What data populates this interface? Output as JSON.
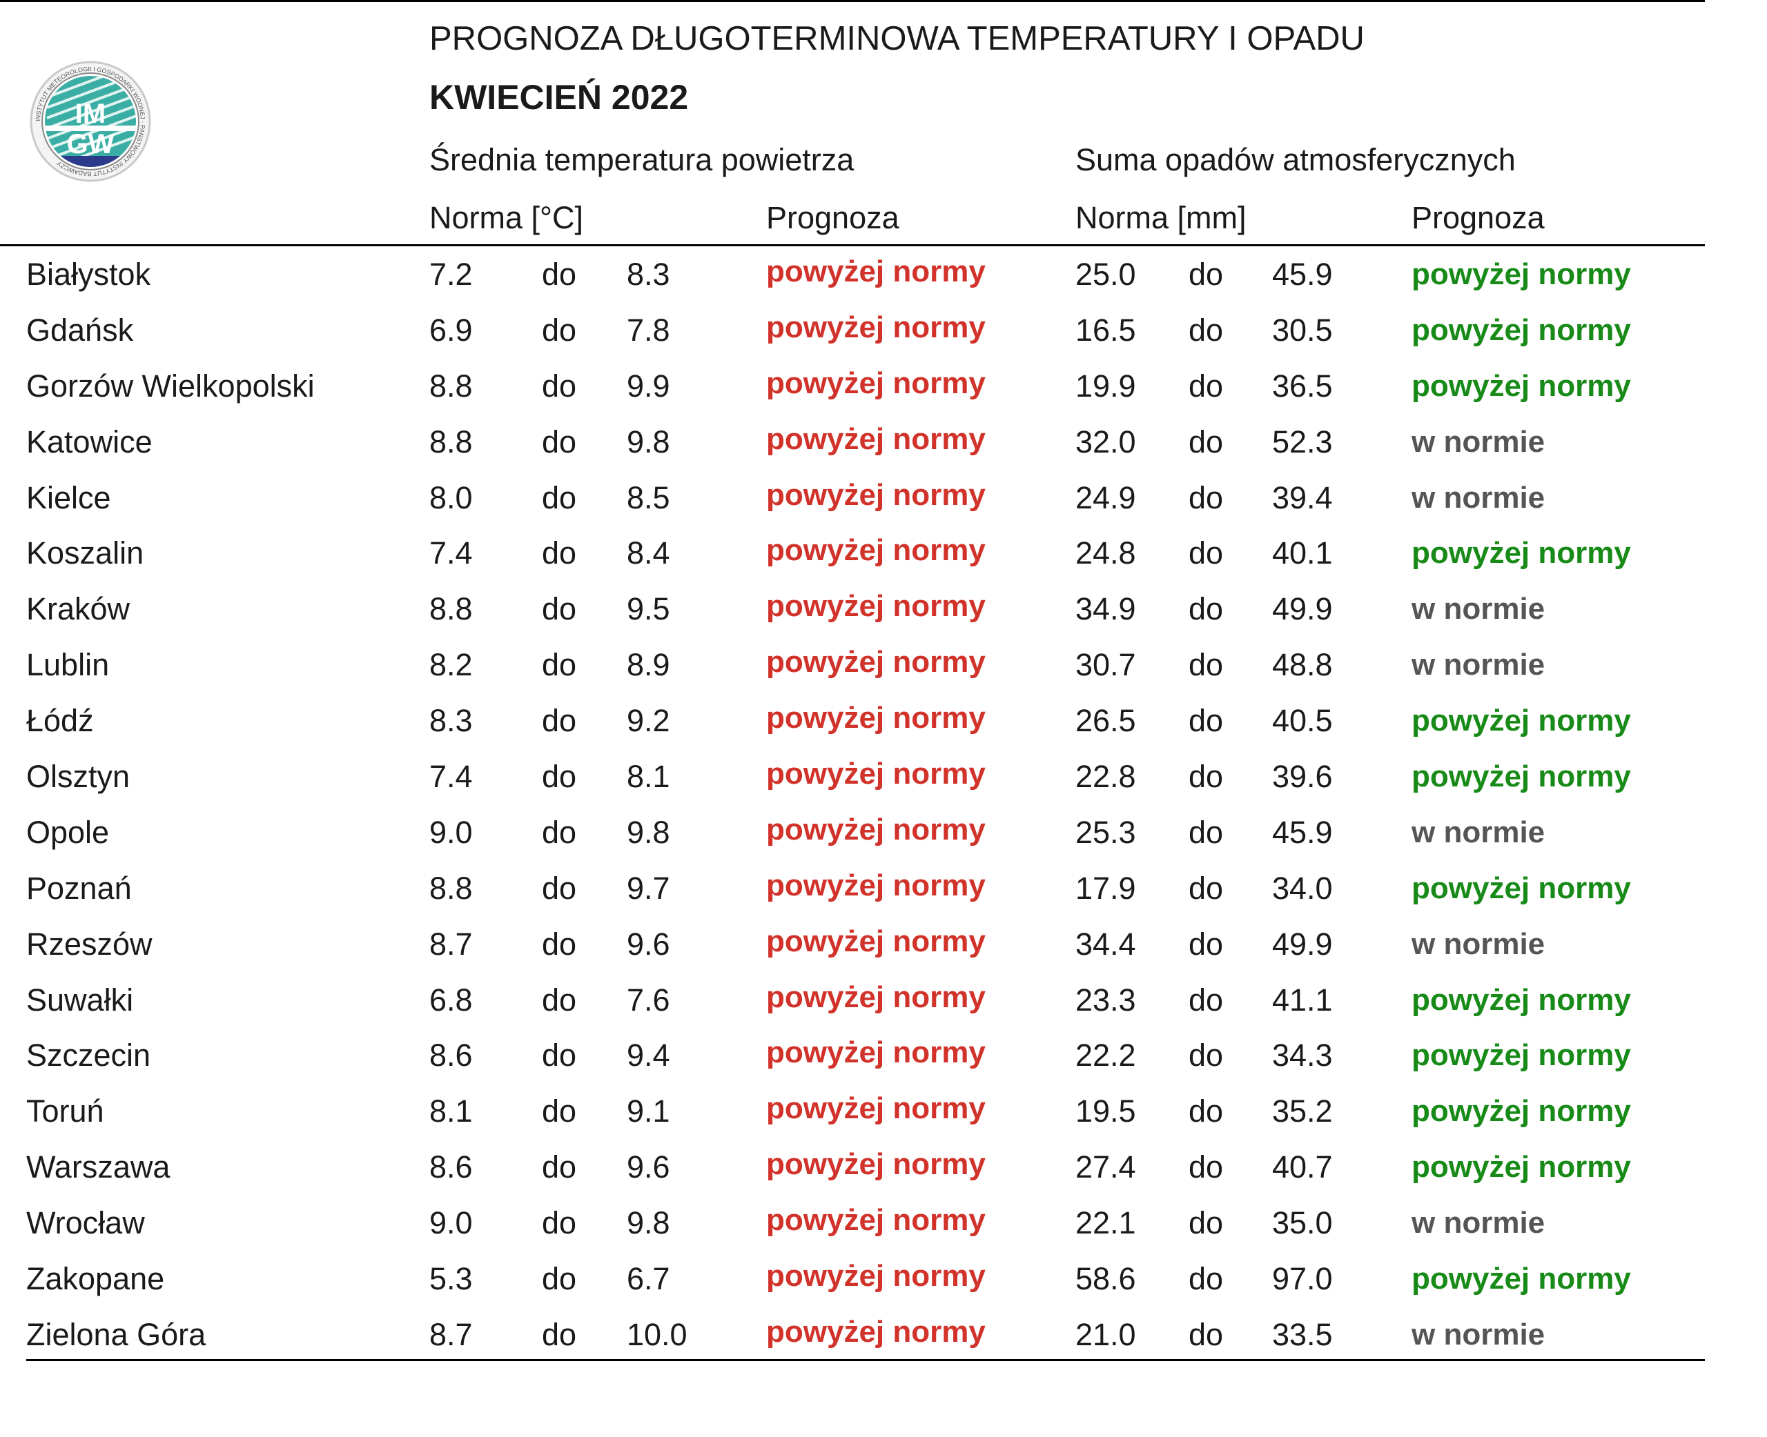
{
  "header": {
    "title": "PROGNOZA DŁUGOTERMINOWA TEMPERATURY I OPADU",
    "subtitle": "KWIECIEŃ 2022",
    "temperature_section": "Średnia temperatura powietrza",
    "precipitation_section": "Suma opadów atmosferycznych",
    "temp_norm_label": "Norma [°C]",
    "temp_forecast_label": "Prognoza",
    "precip_norm_label": "Norma [mm]",
    "precip_forecast_label": "Prognoza"
  },
  "logo": {
    "text_top": "IM",
    "text_bottom": "GW",
    "ring_text": "INSTYTUT METEOROLOGII I GOSPODARKI WODNEJ · PAŃSTWOWY INSTYTUT BADAWCZY"
  },
  "colors": {
    "temp_forecast": "#d1322a",
    "precip_above": "#178a17",
    "precip_normal": "#555555",
    "logo_teal": "#3aaea4"
  },
  "rows": [
    {
      "city": "Białystok",
      "t_min": "7.2",
      "t_do": "do",
      "t_max": "8.3",
      "t_fc": "powyżej normy",
      "p_min": "25.0",
      "p_do": "do",
      "p_max": "45.9",
      "p_fc": "powyżej normy",
      "p_type": "above"
    },
    {
      "city": "Gdańsk",
      "t_min": "6.9",
      "t_do": "do",
      "t_max": "7.8",
      "t_fc": "powyżej normy",
      "p_min": "16.5",
      "p_do": "do",
      "p_max": "30.5",
      "p_fc": "powyżej normy",
      "p_type": "above"
    },
    {
      "city": "Gorzów Wielkopolski",
      "t_min": "8.8",
      "t_do": "do",
      "t_max": "9.9",
      "t_fc": "powyżej normy",
      "p_min": "19.9",
      "p_do": "do",
      "p_max": "36.5",
      "p_fc": "powyżej normy",
      "p_type": "above"
    },
    {
      "city": "Katowice",
      "t_min": "8.8",
      "t_do": "do",
      "t_max": "9.8",
      "t_fc": "powyżej normy",
      "p_min": "32.0",
      "p_do": "do",
      "p_max": "52.3",
      "p_fc": "w normie",
      "p_type": "normal"
    },
    {
      "city": "Kielce",
      "t_min": "8.0",
      "t_do": "do",
      "t_max": "8.5",
      "t_fc": "powyżej normy",
      "p_min": "24.9",
      "p_do": "do",
      "p_max": "39.4",
      "p_fc": "w normie",
      "p_type": "normal"
    },
    {
      "city": "Koszalin",
      "t_min": "7.4",
      "t_do": "do",
      "t_max": "8.4",
      "t_fc": "powyżej normy",
      "p_min": "24.8",
      "p_do": "do",
      "p_max": "40.1",
      "p_fc": "powyżej normy",
      "p_type": "above"
    },
    {
      "city": "Kraków",
      "t_min": "8.8",
      "t_do": "do",
      "t_max": "9.5",
      "t_fc": "powyżej normy",
      "p_min": "34.9",
      "p_do": "do",
      "p_max": "49.9",
      "p_fc": "w normie",
      "p_type": "normal"
    },
    {
      "city": "Lublin",
      "t_min": "8.2",
      "t_do": "do",
      "t_max": "8.9",
      "t_fc": "powyżej normy",
      "p_min": "30.7",
      "p_do": "do",
      "p_max": "48.8",
      "p_fc": "w normie",
      "p_type": "normal"
    },
    {
      "city": "Łódź",
      "t_min": "8.3",
      "t_do": "do",
      "t_max": "9.2",
      "t_fc": "powyżej normy",
      "p_min": "26.5",
      "p_do": "do",
      "p_max": "40.5",
      "p_fc": "powyżej normy",
      "p_type": "above"
    },
    {
      "city": "Olsztyn",
      "t_min": "7.4",
      "t_do": "do",
      "t_max": "8.1",
      "t_fc": "powyżej normy",
      "p_min": "22.8",
      "p_do": "do",
      "p_max": "39.6",
      "p_fc": "powyżej normy",
      "p_type": "above"
    },
    {
      "city": "Opole",
      "t_min": "9.0",
      "t_do": "do",
      "t_max": "9.8",
      "t_fc": "powyżej normy",
      "p_min": "25.3",
      "p_do": "do",
      "p_max": "45.9",
      "p_fc": "w normie",
      "p_type": "normal"
    },
    {
      "city": "Poznań",
      "t_min": "8.8",
      "t_do": "do",
      "t_max": "9.7",
      "t_fc": "powyżej normy",
      "p_min": "17.9",
      "p_do": "do",
      "p_max": "34.0",
      "p_fc": "powyżej normy",
      "p_type": "above"
    },
    {
      "city": "Rzeszów",
      "t_min": "8.7",
      "t_do": "do",
      "t_max": "9.6",
      "t_fc": "powyżej normy",
      "p_min": "34.4",
      "p_do": "do",
      "p_max": "49.9",
      "p_fc": "w normie",
      "p_type": "normal"
    },
    {
      "city": "Suwałki",
      "t_min": "6.8",
      "t_do": "do",
      "t_max": "7.6",
      "t_fc": "powyżej normy",
      "p_min": "23.3",
      "p_do": "do",
      "p_max": "41.1",
      "p_fc": "powyżej normy",
      "p_type": "above"
    },
    {
      "city": "Szczecin",
      "t_min": "8.6",
      "t_do": "do",
      "t_max": "9.4",
      "t_fc": "powyżej normy",
      "p_min": "22.2",
      "p_do": "do",
      "p_max": "34.3",
      "p_fc": "powyżej normy",
      "p_type": "above"
    },
    {
      "city": "Toruń",
      "t_min": "8.1",
      "t_do": "do",
      "t_max": "9.1",
      "t_fc": "powyżej normy",
      "p_min": "19.5",
      "p_do": "do",
      "p_max": "35.2",
      "p_fc": "powyżej normy",
      "p_type": "above"
    },
    {
      "city": "Warszawa",
      "t_min": "8.6",
      "t_do": "do",
      "t_max": "9.6",
      "t_fc": "powyżej normy",
      "p_min": "27.4",
      "p_do": "do",
      "p_max": "40.7",
      "p_fc": "powyżej normy",
      "p_type": "above"
    },
    {
      "city": "Wrocław",
      "t_min": "9.0",
      "t_do": "do",
      "t_max": "9.8",
      "t_fc": "powyżej normy",
      "p_min": "22.1",
      "p_do": "do",
      "p_max": "35.0",
      "p_fc": "w normie",
      "p_type": "normal"
    },
    {
      "city": "Zakopane",
      "t_min": "5.3",
      "t_do": "do",
      "t_max": "6.7",
      "t_fc": "powyżej normy",
      "p_min": "58.6",
      "p_do": "do",
      "p_max": "97.0",
      "p_fc": "powyżej normy",
      "p_type": "above"
    },
    {
      "city": "Zielona Góra",
      "t_min": "8.7",
      "t_do": "do",
      "t_max": "10.0",
      "t_fc": "powyżej normy",
      "p_min": "21.0",
      "p_do": "do",
      "p_max": "33.5",
      "p_fc": "w normie",
      "p_type": "normal"
    }
  ]
}
